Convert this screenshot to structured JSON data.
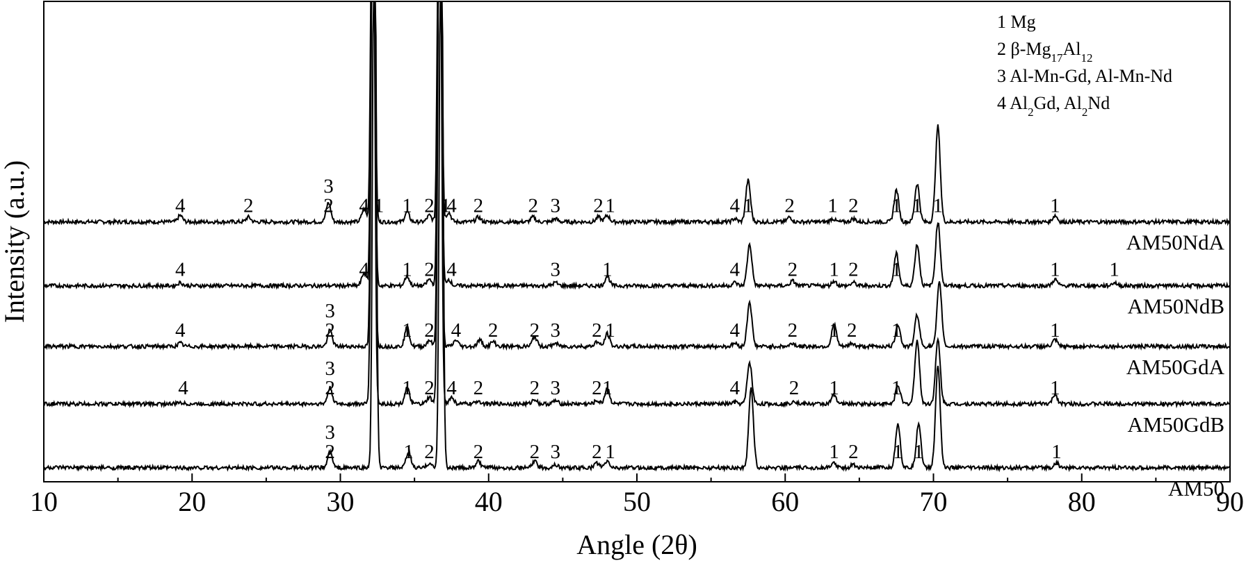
{
  "chart_data": {
    "type": "line",
    "title": "",
    "xlabel": "Angle (2θ)",
    "ylabel": "Intensity (a.u.)",
    "xlim": [
      10,
      90
    ],
    "x_ticks": [
      "10",
      "20",
      "30",
      "40",
      "50",
      "60",
      "70",
      "80",
      "90"
    ],
    "y_ticks": [],
    "grid": false,
    "legend": {
      "position": "top-right",
      "entries": [
        {
          "num": "1",
          "text": "Mg"
        },
        {
          "num": "2",
          "text": "β-Mg",
          "sub1": "17",
          "mid": "Al",
          "sub2": "12"
        },
        {
          "num": "3",
          "text": "Al-Mn-Gd, Al-Mn-Nd"
        },
        {
          "num": "4",
          "text": "Al",
          "sub1": "2",
          "mid": "Gd, Al",
          "sub2": "2",
          "tail": "Nd"
        }
      ]
    },
    "series": [
      {
        "name": "AM50NdA",
        "baseline": 0.64,
        "peaks": [
          [
            19.2,
            0.02
          ],
          [
            23.8,
            0.015
          ],
          [
            29.2,
            0.06
          ],
          [
            31.6,
            0.04
          ],
          [
            32.2,
            2.0
          ],
          [
            34.5,
            0.03
          ],
          [
            36.0,
            0.02
          ],
          [
            36.7,
            2.0
          ],
          [
            37.3,
            0.03
          ],
          [
            39.3,
            0.015
          ],
          [
            43.0,
            0.015
          ],
          [
            44.5,
            0.01
          ],
          [
            47.4,
            0.015
          ],
          [
            48.0,
            0.02
          ],
          [
            56.6,
            0.01
          ],
          [
            57.5,
            0.13
          ],
          [
            60.3,
            0.015
          ],
          [
            63.2,
            0.01
          ],
          [
            64.6,
            0.01
          ],
          [
            67.5,
            0.1
          ],
          [
            68.9,
            0.12
          ],
          [
            70.3,
            0.3
          ],
          [
            78.2,
            0.02
          ]
        ],
        "peak_labels": [
          [
            19.2,
            "4"
          ],
          [
            23.8,
            "2"
          ],
          [
            29.2,
            "3\n2"
          ],
          [
            31.6,
            "4"
          ],
          [
            32.6,
            "1"
          ],
          [
            34.5,
            "1"
          ],
          [
            36.0,
            "2"
          ],
          [
            37.1,
            "1"
          ],
          [
            37.5,
            "4"
          ],
          [
            39.3,
            "2"
          ],
          [
            43.0,
            "2"
          ],
          [
            44.5,
            "3"
          ],
          [
            47.4,
            "2"
          ],
          [
            48.2,
            "1"
          ],
          [
            56.6,
            "4"
          ],
          [
            57.5,
            "1"
          ],
          [
            60.3,
            "2"
          ],
          [
            63.2,
            "1"
          ],
          [
            64.6,
            "2"
          ],
          [
            67.5,
            "1"
          ],
          [
            68.9,
            "1"
          ],
          [
            70.3,
            "1"
          ],
          [
            78.2,
            "1"
          ]
        ]
      },
      {
        "name": "AM50NdB",
        "baseline": 0.44,
        "peaks": [
          [
            19.2,
            0.01
          ],
          [
            31.6,
            0.04
          ],
          [
            32.2,
            2.0
          ],
          [
            34.5,
            0.03
          ],
          [
            36.0,
            0.02
          ],
          [
            36.7,
            2.0
          ],
          [
            37.3,
            0.02
          ],
          [
            44.5,
            0.01
          ],
          [
            48.0,
            0.03
          ],
          [
            56.6,
            0.01
          ],
          [
            57.6,
            0.13
          ],
          [
            60.5,
            0.015
          ],
          [
            63.3,
            0.015
          ],
          [
            64.6,
            0.01
          ],
          [
            67.5,
            0.1
          ],
          [
            68.9,
            0.13
          ],
          [
            70.3,
            0.2
          ],
          [
            78.2,
            0.02
          ],
          [
            82.2,
            0.01
          ]
        ],
        "peak_labels": [
          [
            19.2,
            "4"
          ],
          [
            31.6,
            "4"
          ],
          [
            34.5,
            "1"
          ],
          [
            36.0,
            "2"
          ],
          [
            37.5,
            "4"
          ],
          [
            44.5,
            "3"
          ],
          [
            48.0,
            "1"
          ],
          [
            56.6,
            "4"
          ],
          [
            60.5,
            "2"
          ],
          [
            63.3,
            "1"
          ],
          [
            64.6,
            "2"
          ],
          [
            67.5,
            "1"
          ],
          [
            78.2,
            "1"
          ],
          [
            82.2,
            "1"
          ]
        ]
      },
      {
        "name": "AM50GdA",
        "baseline": 0.25,
        "peaks": [
          [
            19.2,
            0.01
          ],
          [
            29.3,
            0.05
          ],
          [
            32.2,
            2.0
          ],
          [
            34.5,
            0.06
          ],
          [
            36.0,
            0.02
          ],
          [
            36.7,
            2.0
          ],
          [
            37.8,
            0.02
          ],
          [
            39.4,
            0.02
          ],
          [
            40.3,
            0.015
          ],
          [
            43.1,
            0.03
          ],
          [
            44.5,
            0.01
          ],
          [
            47.3,
            0.015
          ],
          [
            48.0,
            0.04
          ],
          [
            56.6,
            0.01
          ],
          [
            57.6,
            0.14
          ],
          [
            60.5,
            0.01
          ],
          [
            63.3,
            0.07
          ],
          [
            64.5,
            0.01
          ],
          [
            67.6,
            0.07
          ],
          [
            68.9,
            0.1
          ],
          [
            70.4,
            0.2
          ],
          [
            78.2,
            0.02
          ]
        ],
        "peak_labels": [
          [
            19.2,
            "4"
          ],
          [
            29.3,
            "3\n2"
          ],
          [
            34.5,
            "1"
          ],
          [
            36.0,
            "2"
          ],
          [
            37.8,
            "4"
          ],
          [
            40.3,
            "2"
          ],
          [
            43.1,
            "2"
          ],
          [
            44.5,
            "3"
          ],
          [
            47.3,
            "2"
          ],
          [
            48.2,
            "1"
          ],
          [
            56.6,
            "4"
          ],
          [
            60.5,
            "2"
          ],
          [
            63.3,
            "1"
          ],
          [
            64.5,
            "2"
          ],
          [
            67.5,
            "1"
          ],
          [
            78.2,
            "1"
          ]
        ]
      },
      {
        "name": "AM50GdB",
        "baseline": 0.07,
        "peaks": [
          [
            19.2,
            0.005
          ],
          [
            29.3,
            0.05
          ],
          [
            32.2,
            2.0
          ],
          [
            34.5,
            0.05
          ],
          [
            36.0,
            0.02
          ],
          [
            36.7,
            2.0
          ],
          [
            37.5,
            0.02
          ],
          [
            39.3,
            0.01
          ],
          [
            43.1,
            0.015
          ],
          [
            44.5,
            0.01
          ],
          [
            47.3,
            0.01
          ],
          [
            48.0,
            0.05
          ],
          [
            56.6,
            0.005
          ],
          [
            57.6,
            0.13
          ],
          [
            60.6,
            0.01
          ],
          [
            63.3,
            0.03
          ],
          [
            67.6,
            0.06
          ],
          [
            68.9,
            0.2
          ],
          [
            70.3,
            0.2
          ],
          [
            78.2,
            0.03
          ]
        ],
        "peak_labels": [
          [
            19.4,
            "4"
          ],
          [
            29.3,
            "3\n2"
          ],
          [
            34.5,
            "1"
          ],
          [
            36.0,
            "2"
          ],
          [
            37.5,
            "4"
          ],
          [
            39.3,
            "2"
          ],
          [
            43.1,
            "2"
          ],
          [
            44.5,
            "3"
          ],
          [
            47.3,
            "2"
          ],
          [
            48.0,
            "1"
          ],
          [
            56.6,
            "4"
          ],
          [
            60.6,
            "2"
          ],
          [
            63.3,
            "1"
          ],
          [
            67.5,
            "1"
          ],
          [
            78.2,
            "1"
          ]
        ]
      },
      {
        "name": "AM50",
        "baseline": -0.13,
        "peaks": [
          [
            29.3,
            0.05
          ],
          [
            32.3,
            2.0
          ],
          [
            34.6,
            0.05
          ],
          [
            36.0,
            0.015
          ],
          [
            36.8,
            2.0
          ],
          [
            39.3,
            0.02
          ],
          [
            43.1,
            0.02
          ],
          [
            44.5,
            0.01
          ],
          [
            47.3,
            0.015
          ],
          [
            48.0,
            0.02
          ],
          [
            57.7,
            0.25
          ],
          [
            63.3,
            0.015
          ],
          [
            64.6,
            0.01
          ],
          [
            67.6,
            0.14
          ],
          [
            69.0,
            0.14
          ],
          [
            70.3,
            0.32
          ],
          [
            78.3,
            0.015
          ]
        ],
        "peak_labels": [
          [
            29.3,
            "3\n2"
          ],
          [
            34.6,
            "1"
          ],
          [
            36.0,
            "2"
          ],
          [
            39.3,
            "2"
          ],
          [
            43.1,
            "2"
          ],
          [
            44.5,
            "3"
          ],
          [
            47.3,
            "2"
          ],
          [
            48.2,
            "1"
          ],
          [
            63.3,
            "1"
          ],
          [
            64.6,
            "2"
          ],
          [
            67.6,
            "1"
          ],
          [
            69.0,
            "1"
          ],
          [
            78.3,
            "1"
          ]
        ]
      }
    ]
  }
}
